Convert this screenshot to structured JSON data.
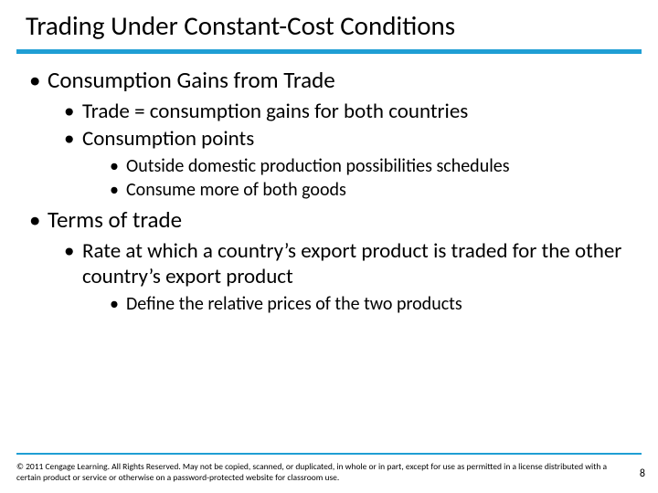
{
  "title": "Trading Under Constant-Cost Conditions",
  "colors": {
    "accent": "#1f9ed4",
    "text": "#000000",
    "background": "#ffffff"
  },
  "bullets": {
    "section1": {
      "heading": "Consumption Gains from Trade",
      "sub1": "Trade = consumption gains for both countries",
      "sub2": "Consumption points",
      "sub2a": "Outside domestic production possibilities schedules",
      "sub2b": "Consume more of both goods"
    },
    "section2": {
      "heading": "Terms of trade",
      "sub1": "Rate at which a country’s export product is traded for the other country’s export product",
      "sub1a": "Define the relative prices of the two products"
    }
  },
  "copyright": "© 2011 Cengage Learning. All Rights Reserved. May not be copied, scanned, or duplicated, in whole or in part, except for use as permitted in a license distributed with a certain product or service or otherwise on a password-protected website for classroom use.",
  "page_number": "8"
}
